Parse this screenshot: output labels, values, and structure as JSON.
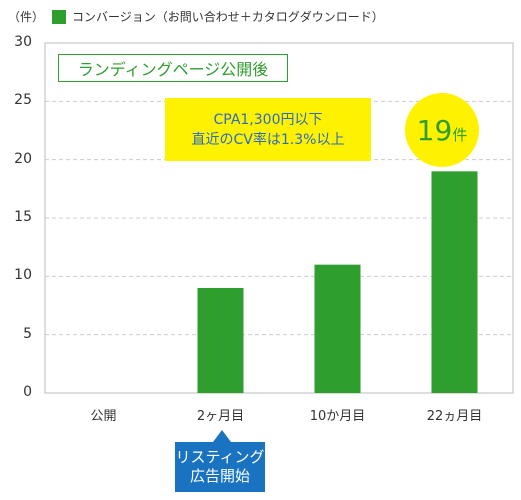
{
  "chart_data": {
    "type": "bar",
    "unit_label": "（件）",
    "legend": "コンバージョン（お問い合わせ＋カタログダウンロード）",
    "categories": [
      "公開",
      "2ヶ月目",
      "10か月目",
      "22ヵ月目"
    ],
    "series": [
      {
        "name": "コンバージョン（お問い合わせ＋カタログダウンロード）",
        "values": [
          0,
          9,
          11,
          19
        ]
      }
    ],
    "ylim": [
      0,
      30
    ],
    "yticks": [
      0,
      5,
      10,
      15,
      20,
      25,
      30
    ],
    "grid": true,
    "bar_color": "#2e9e2e",
    "annotations": {
      "lp_label": "ランディングページ公開後",
      "cpa_line1": "CPA1,300円以下",
      "cpa_line2": "直近のCV率は1.3%以上",
      "highlight_value": "19",
      "highlight_unit": "件",
      "callout_line1": "リスティング",
      "callout_line2": "広告開始"
    }
  }
}
